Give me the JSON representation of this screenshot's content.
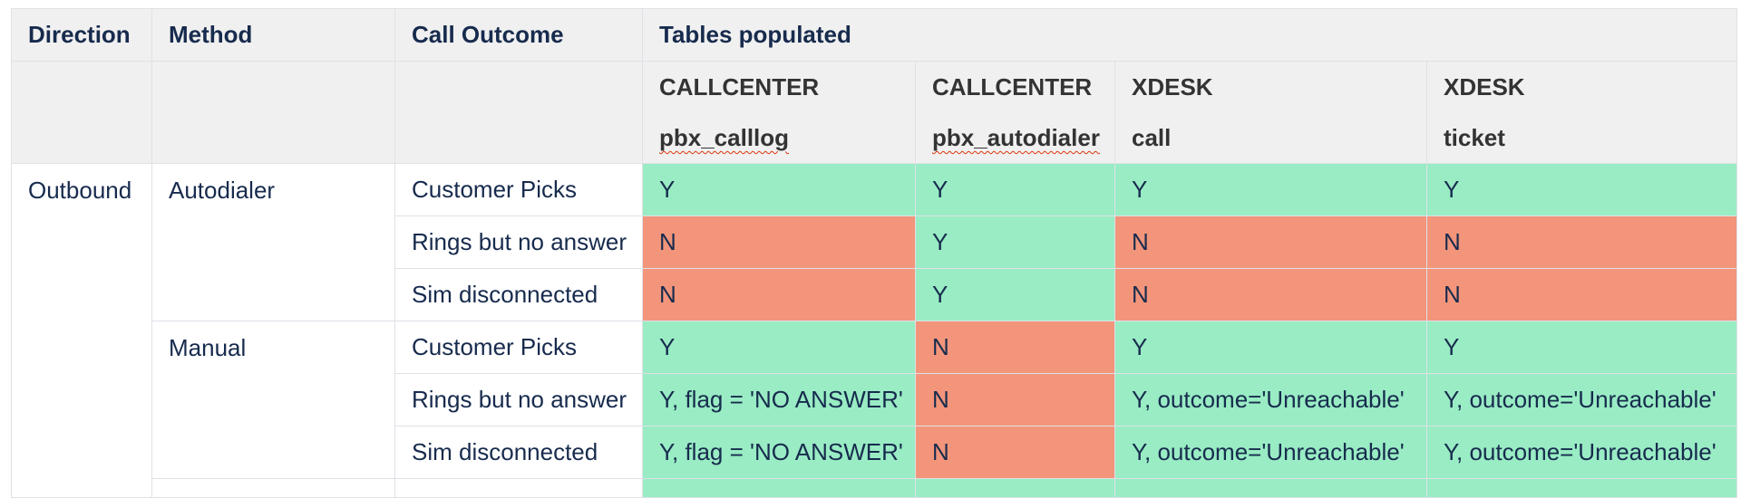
{
  "headers": {
    "direction": "Direction",
    "method": "Method",
    "call_outcome": "Call Outcome",
    "tables_populated": "Tables populated"
  },
  "sub_headers": [
    {
      "system": "CALLCENTER",
      "table": "pbx_calllog"
    },
    {
      "system": "CALLCENTER",
      "table": "pbx_autodialer"
    },
    {
      "system": "XDESK",
      "table": "call"
    },
    {
      "system": "XDESK",
      "table": "ticket"
    }
  ],
  "groups": {
    "direction": "Outbound",
    "method_autodialer": "Autodialer",
    "method_manual": "Manual"
  },
  "rows": [
    {
      "outcome": "Customer Picks",
      "cells": [
        "Y",
        "Y",
        "Y",
        "Y"
      ],
      "status": [
        "green",
        "green",
        "green",
        "green"
      ]
    },
    {
      "outcome": "Rings but no answer",
      "cells": [
        "N",
        "Y",
        "N",
        "N"
      ],
      "status": [
        "red",
        "green",
        "red",
        "red"
      ]
    },
    {
      "outcome": "Sim disconnected",
      "cells": [
        "N",
        "Y",
        "N",
        "N"
      ],
      "status": [
        "red",
        "green",
        "red",
        "red"
      ]
    },
    {
      "outcome": "Customer Picks",
      "cells": [
        "Y",
        "N",
        "Y",
        "Y"
      ],
      "status": [
        "green",
        "red",
        "green",
        "green"
      ]
    },
    {
      "outcome": "Rings but no answer",
      "cells": [
        "Y, flag = 'NO ANSWER'",
        "N",
        "Y, outcome='Unreachable'",
        "Y, outcome='Unreachable'"
      ],
      "status": [
        "green",
        "red",
        "green",
        "green"
      ]
    },
    {
      "outcome": "Sim disconnected",
      "cells": [
        "Y, flag = 'NO ANSWER'",
        "N",
        "Y, outcome='Unreachable'",
        "Y, outcome='Unreachable'"
      ],
      "status": [
        "green",
        "red",
        "green",
        "green"
      ]
    }
  ],
  "colors": {
    "green": "#99ecc4",
    "red": "#f2957b",
    "header_bg": "#f0f0f0",
    "text": "#172b4d"
  }
}
